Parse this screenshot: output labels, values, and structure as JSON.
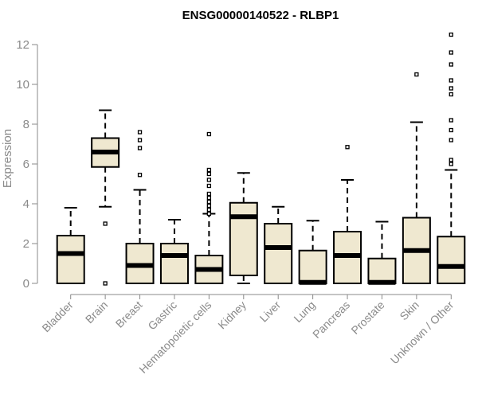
{
  "chart_data": {
    "type": "boxplot",
    "title": "ENSG00000140522 - RLBP1",
    "xlabel": "",
    "ylabel": "Expression",
    "ylim": [
      0,
      12.5
    ],
    "yticks": [
      0,
      2,
      4,
      6,
      8,
      10,
      12
    ],
    "grid": false,
    "box_fill": "#efe8d0",
    "box_stroke": "#000000",
    "axis_color": "#8a8a8a",
    "categories": [
      "Bladder",
      "Brain",
      "Breast",
      "Gastric",
      "Hematopoietic cells",
      "Kidney",
      "Liver",
      "Lung",
      "Pancreas",
      "Prostate",
      "Skin",
      "Unknown / Other"
    ],
    "boxes": [
      {
        "whisker_low": 0.0,
        "q1": 0.0,
        "median": 1.5,
        "q3": 2.4,
        "whisker_high": 3.8,
        "outliers": []
      },
      {
        "whisker_low": 3.85,
        "q1": 5.85,
        "median": 6.6,
        "q3": 7.3,
        "whisker_high": 8.7,
        "outliers": [
          3.0,
          0.0
        ]
      },
      {
        "whisker_low": 0.0,
        "q1": 0.0,
        "median": 0.9,
        "q3": 2.0,
        "whisker_high": 4.7,
        "outliers": [
          5.45,
          6.8,
          7.2,
          7.6
        ]
      },
      {
        "whisker_low": 0.0,
        "q1": 0.0,
        "median": 1.4,
        "q3": 2.0,
        "whisker_high": 3.2,
        "outliers": []
      },
      {
        "whisker_low": 0.0,
        "q1": 0.0,
        "median": 0.7,
        "q3": 1.4,
        "whisker_high": 3.5,
        "outliers": [
          3.5,
          3.7,
          3.9,
          4.1,
          4.3,
          4.5,
          4.9,
          5.2,
          5.5,
          5.7,
          7.5
        ]
      },
      {
        "whisker_low": 0.0,
        "q1": 0.4,
        "median": 3.35,
        "q3": 4.05,
        "whisker_high": 5.55,
        "outliers": []
      },
      {
        "whisker_low": 0.0,
        "q1": 0.0,
        "median": 1.8,
        "q3": 3.0,
        "whisker_high": 3.85,
        "outliers": []
      },
      {
        "whisker_low": 0.0,
        "q1": 0.0,
        "median": 0.05,
        "q3": 1.65,
        "whisker_high": 3.15,
        "outliers": []
      },
      {
        "whisker_low": 0.0,
        "q1": 0.0,
        "median": 1.4,
        "q3": 2.6,
        "whisker_high": 5.2,
        "outliers": [
          6.85
        ]
      },
      {
        "whisker_low": 0.0,
        "q1": 0.0,
        "median": 0.05,
        "q3": 1.25,
        "whisker_high": 3.1,
        "outliers": []
      },
      {
        "whisker_low": 0.0,
        "q1": 0.0,
        "median": 1.65,
        "q3": 3.3,
        "whisker_high": 8.1,
        "outliers": [
          10.5
        ]
      },
      {
        "whisker_low": 0.0,
        "q1": 0.0,
        "median": 0.85,
        "q3": 2.35,
        "whisker_high": 5.7,
        "outliers": [
          6.0,
          6.2,
          7.2,
          7.7,
          8.2,
          9.5,
          9.8,
          10.2,
          11.0,
          11.6,
          12.5
        ]
      }
    ]
  }
}
